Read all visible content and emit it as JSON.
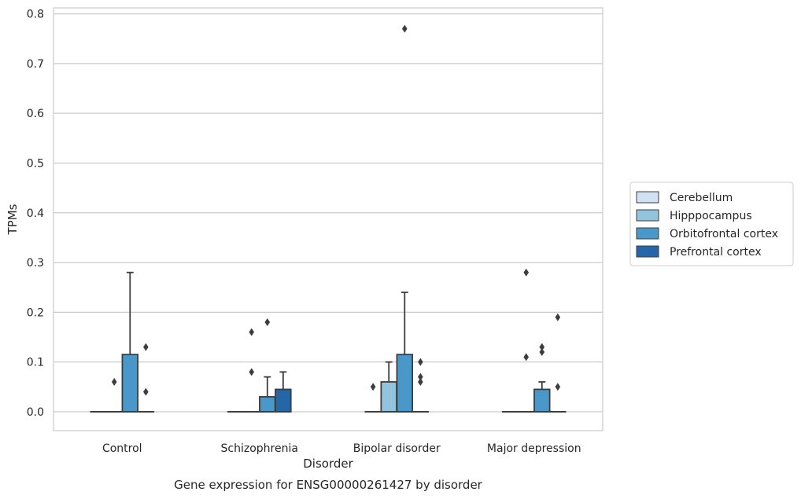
{
  "chart_data": {
    "type": "box",
    "title": "Gene expression for ENSG00000261427 by disorder",
    "xlabel": "Disorder",
    "ylabel": "TPMs",
    "ylim": [
      -0.038,
      0.812
    ],
    "yticks": [
      0.0,
      0.1,
      0.2,
      0.3,
      0.4,
      0.5,
      0.6,
      0.7,
      0.8
    ],
    "ytick_labels": [
      "0.0",
      "0.1",
      "0.2",
      "0.3",
      "0.4",
      "0.5",
      "0.6",
      "0.7",
      "0.8"
    ],
    "categories": [
      "Control",
      "Schizophrenia",
      "Bipolar disorder",
      "Major depression"
    ],
    "grid": "horizontal",
    "legend_position": "right",
    "series": [
      {
        "name": "Cerebellum",
        "color": "#cfe1f2",
        "boxes": [
          {
            "q1": 0,
            "median": 0,
            "q3": 0,
            "whislo": 0,
            "whishi": 0,
            "fliers": []
          },
          {
            "q1": 0,
            "median": 0,
            "q3": 0,
            "whislo": 0,
            "whishi": 0,
            "fliers": []
          },
          {
            "q1": 0,
            "median": 0,
            "q3": 0,
            "whislo": 0,
            "whishi": 0,
            "fliers": [
              0.05
            ]
          },
          {
            "q1": 0,
            "median": 0,
            "q3": 0,
            "whislo": 0,
            "whishi": 0,
            "fliers": []
          }
        ]
      },
      {
        "name": "Hipppocampus",
        "color": "#93c4de",
        "boxes": [
          {
            "q1": 0,
            "median": 0,
            "q3": 0,
            "whislo": 0,
            "whishi": 0,
            "fliers": [
              0.06
            ]
          },
          {
            "q1": 0,
            "median": 0,
            "q3": 0,
            "whislo": 0,
            "whishi": 0,
            "fliers": [
              0.08,
              0.16
            ]
          },
          {
            "q1": 0,
            "median": 0,
            "q3": 0.06,
            "whislo": 0,
            "whishi": 0.1,
            "fliers": []
          },
          {
            "q1": 0,
            "median": 0,
            "q3": 0,
            "whislo": 0,
            "whishi": 0,
            "fliers": [
              0.11,
              0.28
            ]
          }
        ]
      },
      {
        "name": "Orbitofrontal cortex",
        "color": "#4a98c9",
        "boxes": [
          {
            "q1": 0,
            "median": 0,
            "q3": 0.115,
            "whislo": 0,
            "whishi": 0.28,
            "fliers": []
          },
          {
            "q1": 0,
            "median": 0,
            "q3": 0.03,
            "whislo": 0,
            "whishi": 0.07,
            "fliers": [
              0.18
            ]
          },
          {
            "q1": 0,
            "median": 0,
            "q3": 0.115,
            "whislo": 0,
            "whishi": 0.24,
            "fliers": [
              0.77
            ]
          },
          {
            "q1": 0,
            "median": 0,
            "q3": 0.045,
            "whislo": 0,
            "whishi": 0.06,
            "fliers": [
              0.12,
              0.13
            ]
          }
        ]
      },
      {
        "name": "Prefrontal cortex",
        "color": "#2566a8",
        "boxes": [
          {
            "q1": 0,
            "median": 0,
            "q3": 0,
            "whislo": 0,
            "whishi": 0,
            "fliers": [
              0.04,
              0.13
            ]
          },
          {
            "q1": 0,
            "median": 0,
            "q3": 0.045,
            "whislo": 0,
            "whishi": 0.08,
            "fliers": []
          },
          {
            "q1": 0,
            "median": 0,
            "q3": 0,
            "whislo": 0,
            "whishi": 0,
            "fliers": [
              0.06,
              0.07,
              0.1
            ]
          },
          {
            "q1": 0,
            "median": 0,
            "q3": 0,
            "whislo": 0,
            "whishi": 0,
            "fliers": [
              0.05,
              0.19
            ]
          }
        ]
      }
    ]
  }
}
